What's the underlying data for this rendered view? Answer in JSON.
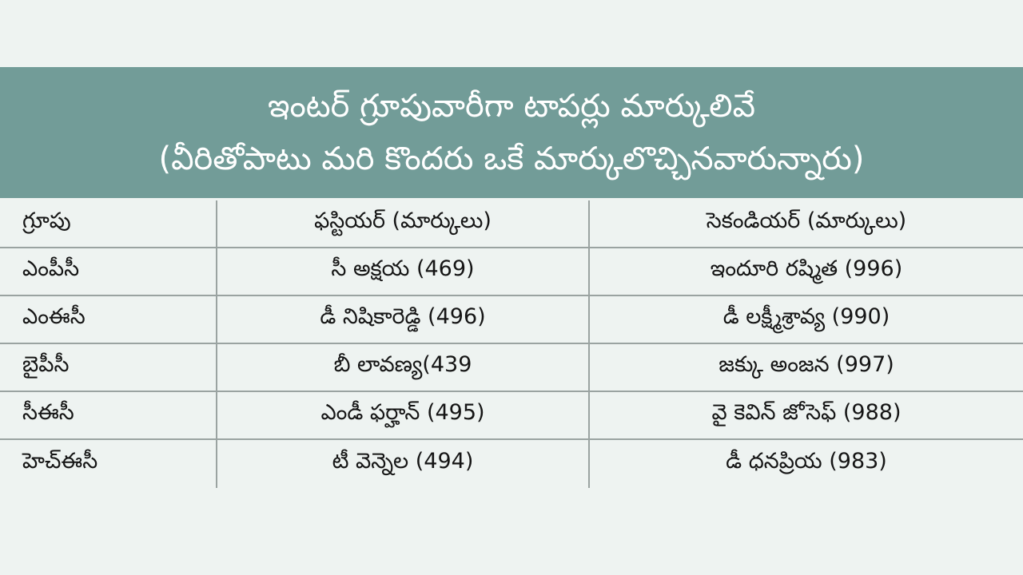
{
  "header": {
    "title_line1": "ఇంటర్ గ్రూపువారీగా టాపర్లు మార్కులివే",
    "title_line2": "(వీరితోపాటు మరి కొందరు ఒకే మార్కులొచ్చినవారున్నారు)"
  },
  "table": {
    "columns": [
      "గ్రూపు",
      "ఫస్టియర్ (మార్కులు)",
      "సెకండియర్ (మార్కులు)"
    ],
    "rows": [
      [
        "ఎంపీసీ",
        "సీ అక్షయ (469)",
        "ఇందూరి రష్మిత (996)"
      ],
      [
        "ఎంఈసీ",
        "డీ నిషికారెడ్డి (496)",
        "డీ లక్ష్మీశ్రావ్య (990)"
      ],
      [
        "బైపీసీ",
        "బీ లావణ్య(439",
        "జక్కు అంజన (997)"
      ],
      [
        "సీఈసీ",
        "ఎండీ ఫర్హాన్ (495)",
        "వై కెవిన్ జోసెఫ్ (988)"
      ],
      [
        "హెచ్ఈసీ",
        "టీ వెన్నెల (494)",
        "డీ ధనప్రియ (983)"
      ]
    ]
  },
  "colors": {
    "header_bg": "#729c98",
    "page_bg": "#eef3f1",
    "grid_line": "#9aa3a1"
  }
}
